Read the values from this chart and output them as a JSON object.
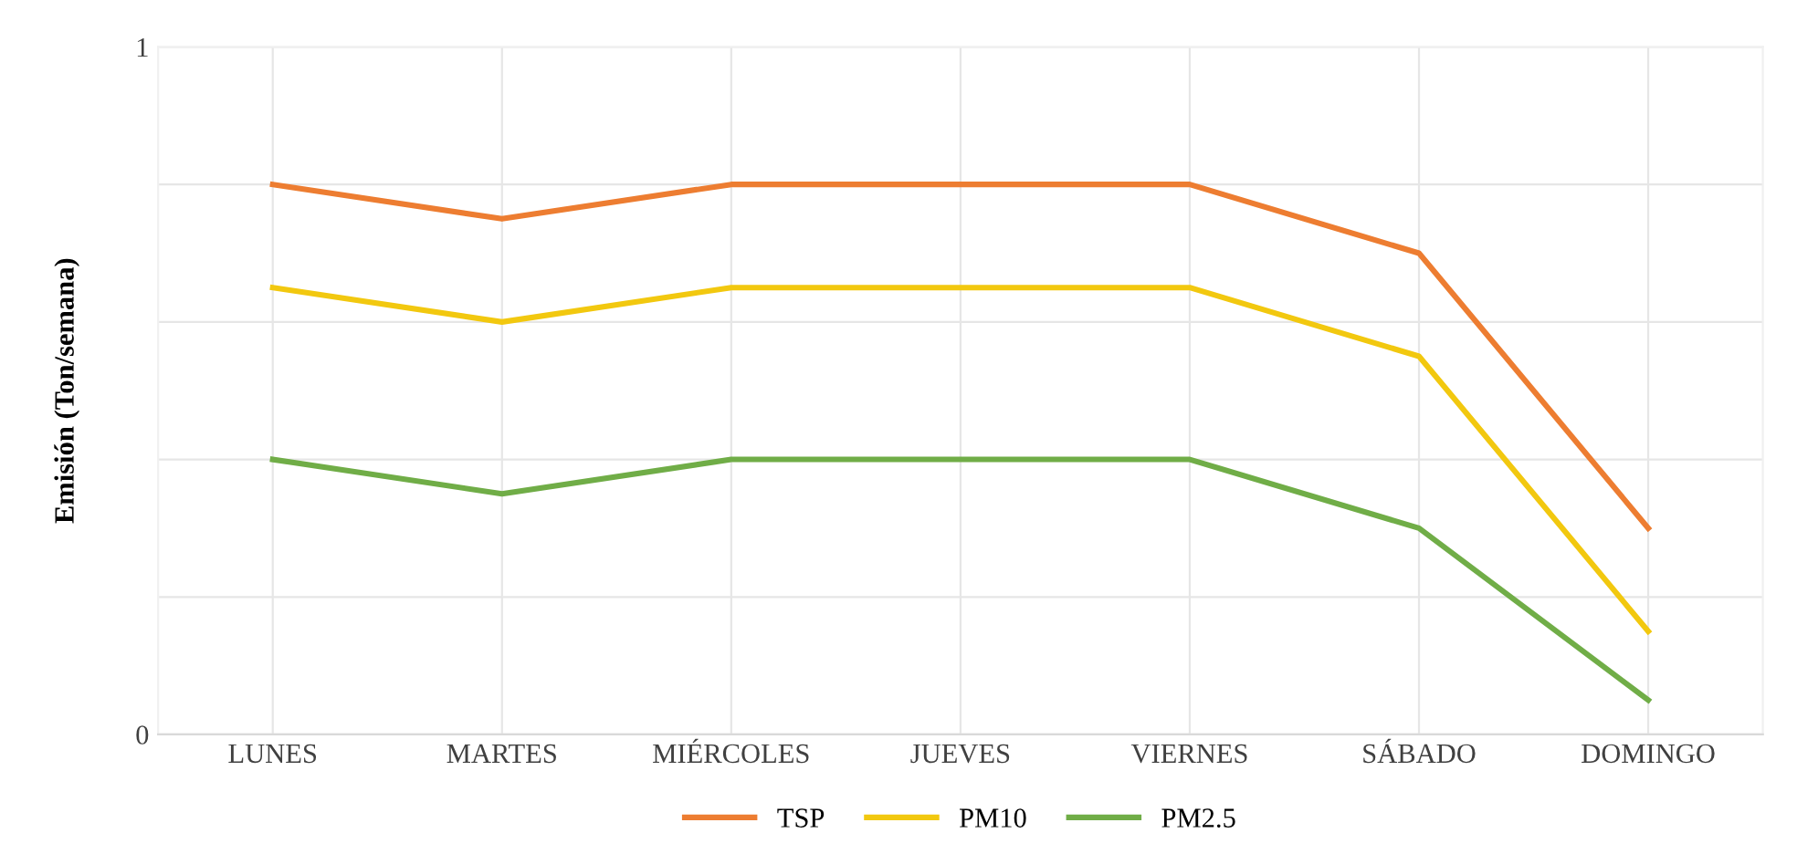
{
  "chart_data": {
    "type": "line",
    "ylabel": "Emisión (Ton/semana)",
    "categories": [
      "LUNES",
      "MARTES",
      "MIÉRCOLES",
      "JUEVES",
      "VIERNES",
      "SÁBADO",
      "DOMINGO"
    ],
    "series": [
      {
        "name": "TSP",
        "color": "#ed7d31",
        "values": [
          0.8,
          0.75,
          0.8,
          0.8,
          0.8,
          0.7,
          0.3
        ]
      },
      {
        "name": "PM10",
        "color": "#f2c80f",
        "values": [
          0.65,
          0.6,
          0.65,
          0.65,
          0.65,
          0.55,
          0.15
        ]
      },
      {
        "name": "PM2.5",
        "color": "#70ad47",
        "values": [
          0.4,
          0.35,
          0.4,
          0.4,
          0.4,
          0.3,
          0.05
        ]
      }
    ],
    "ylim": [
      0,
      1
    ],
    "yticks": [
      0,
      {
        "value": 0.2,
        "label": null
      },
      {
        "value": 0.4,
        "label": null
      },
      {
        "value": 0.6,
        "label": null
      },
      {
        "value": 0.8,
        "label": null
      },
      1
    ],
    "grid": true,
    "legend": "bottom",
    "marker": "none",
    "line_style": "solid"
  }
}
